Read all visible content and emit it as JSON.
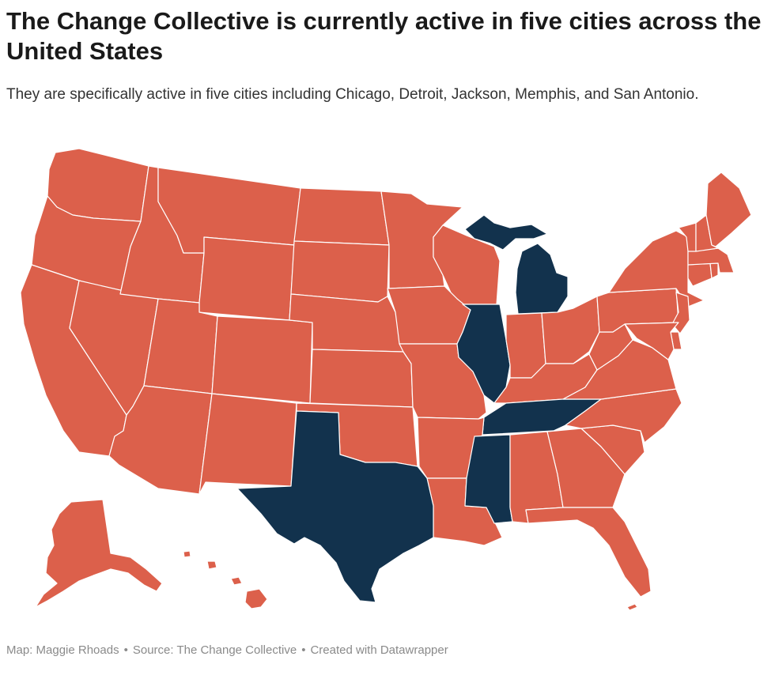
{
  "title": "The Change Collective is currently active in five cities across the United States",
  "subtitle": "They are specifically active in five cities including Chicago, Detroit, Jackson, Memphis, and San Antonio.",
  "footer": {
    "map_credit": "Map: Maggie Rhoads",
    "source": "Source: The Change Collective",
    "created_with": "Created with Datawrapper",
    "separator": "•"
  },
  "colors": {
    "active": "#12324d",
    "inactive": "#dc604b",
    "border": "#ffffff"
  },
  "map": {
    "region": "United States",
    "active_states": [
      "Illinois",
      "Michigan",
      "Mississippi",
      "Tennessee",
      "Texas"
    ]
  }
}
